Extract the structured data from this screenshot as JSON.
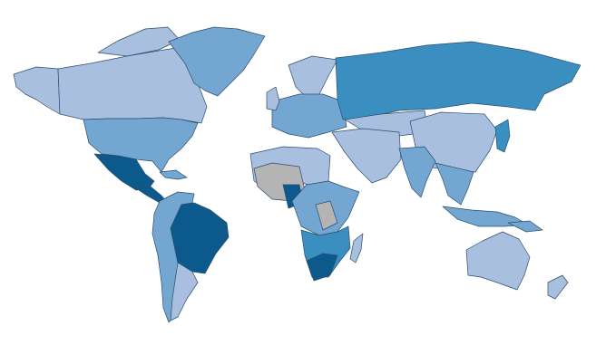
{
  "map": {
    "colors": {
      "light": "#a9bfdf",
      "mid": "#73a7d2",
      "dark": "#3a8fc0",
      "darkest": "#0b5a8b",
      "none": "#b4b4b4",
      "border": "#2c4d6e"
    }
  }
}
